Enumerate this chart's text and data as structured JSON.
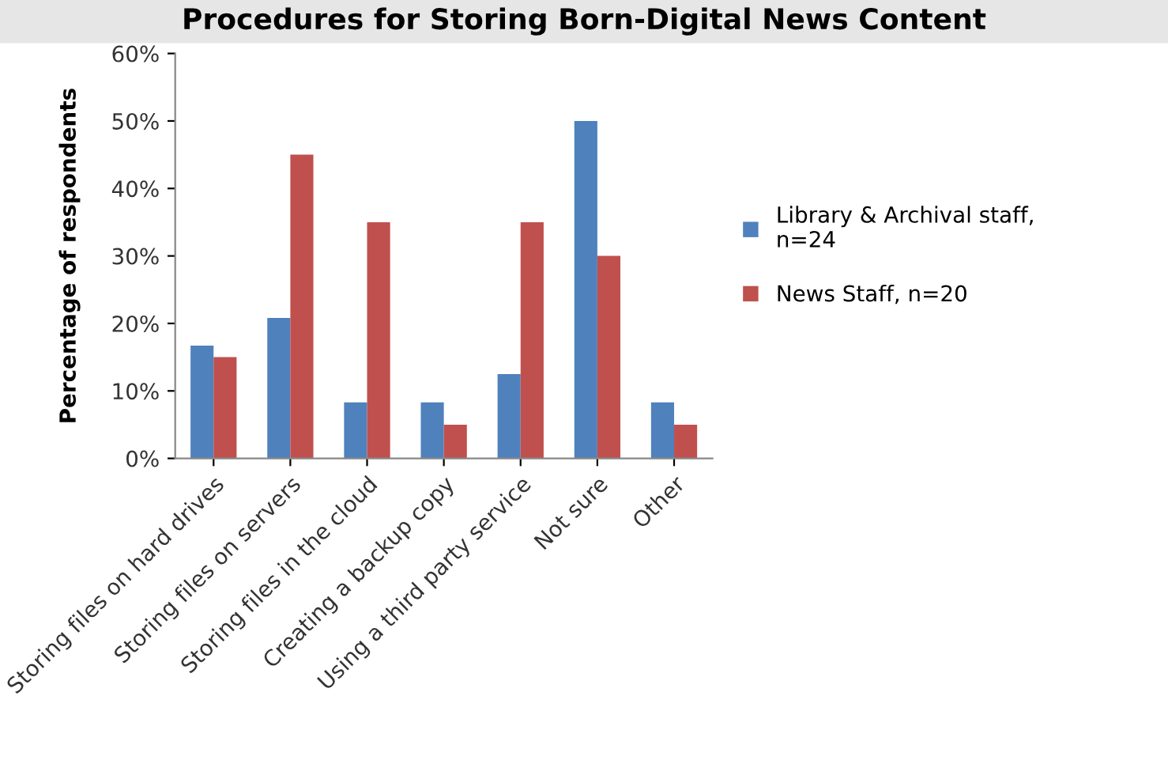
{
  "chart_data": {
    "type": "bar",
    "title": "Procedures for Storing Born-Digital News Content",
    "ylabel": "Percentage of respondents",
    "categories": [
      "Storing files on hard drives",
      "Storing files on servers",
      "Storing files in the cloud",
      "Creating a backup copy",
      "Using a third party service",
      "Not sure",
      "Other"
    ],
    "series": [
      {
        "name": "Library & Archival staff,\nn=24",
        "color": "#4f81bd",
        "values": [
          16.7,
          20.8,
          8.3,
          8.3,
          12.5,
          50,
          8.3
        ]
      },
      {
        "name": "News Staff, n=20",
        "color": "#c0504d",
        "values": [
          15,
          45,
          35,
          5,
          35,
          30,
          5
        ]
      }
    ],
    "ylim": [
      0,
      60
    ],
    "yticks": [
      {
        "value": 0,
        "label": "0%"
      },
      {
        "value": 10,
        "label": "10%"
      },
      {
        "value": 20,
        "label": "20%"
      },
      {
        "value": 30,
        "label": "30%"
      },
      {
        "value": 40,
        "label": "40%"
      },
      {
        "value": 50,
        "label": "50%"
      },
      {
        "value": 60,
        "label": "60%"
      }
    ],
    "grid": false,
    "legend": "right"
  }
}
